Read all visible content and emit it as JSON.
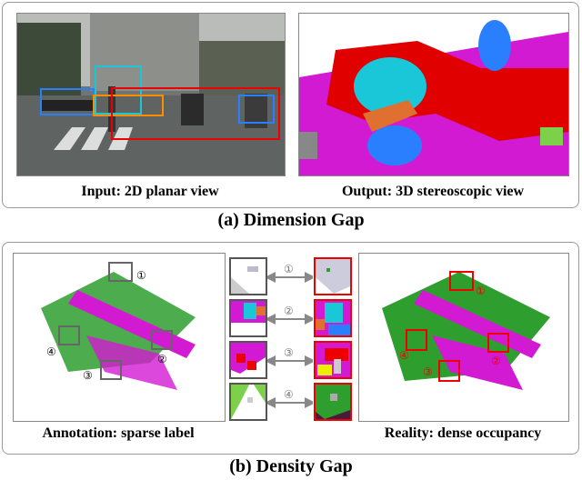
{
  "top_panel": {
    "left_caption": "Input: 2D planar view",
    "right_caption": "Output: 3D stereoscopic view",
    "title": "(a) Dimension Gap"
  },
  "bottom_panel": {
    "left_caption": "Annotation: sparse label",
    "right_caption": "Reality: dense occupancy",
    "title": "(b) Density Gap",
    "markers": [
      "①",
      "②",
      "③",
      "④"
    ]
  },
  "colors": {
    "highlight_red": "#e00000",
    "box_blue": "#2a7fff",
    "box_cyan": "#19c7d8",
    "box_orange": "#ff8c00",
    "magenta": "#d21ad2",
    "green": "#2e9e2e",
    "gray_voxel": "#c8c8d0"
  }
}
